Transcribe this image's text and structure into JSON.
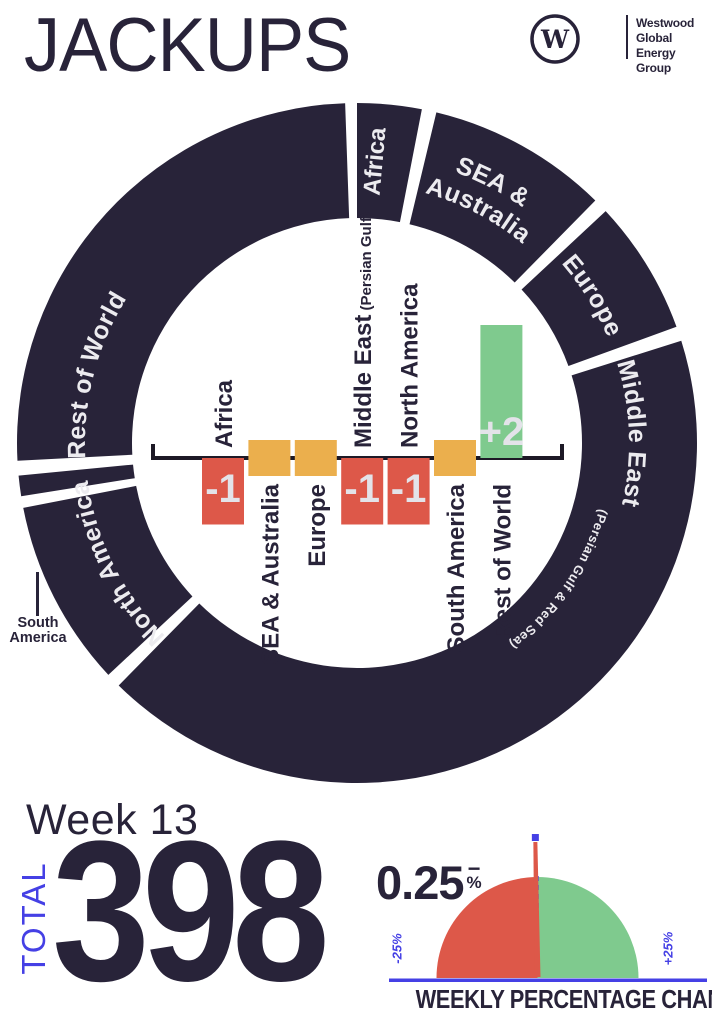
{
  "header": {
    "title": "JACKUPS",
    "logo": {
      "mark": "W",
      "line1": "Westwood",
      "line2": "Global Energy",
      "line3": "Group"
    }
  },
  "colors": {
    "navy": "#282339",
    "red": "#DD5849",
    "yellow": "#EBAF4D",
    "green": "#7FCA8E",
    "blue": "#4540E5",
    "ring_label_text": "#ECEBEF",
    "bar_value_text": "#E3E3E9",
    "axis_black": "#1D1926"
  },
  "south_america_callout": {
    "lines": [
      "South",
      "America"
    ]
  },
  "stats": {
    "week_label": "Week 13",
    "total_label": "TOTAL",
    "total_value": "398"
  },
  "chart_data": [
    {
      "type": "pie",
      "variant": "donut",
      "description": "Share of jackup rigs by region; ring segment size indicates share",
      "segments": [
        {
          "label": "Africa",
          "start_deg": 0,
          "end_deg": 11,
          "label_style": "radial",
          "label_angle": 5.2
        },
        {
          "label": "SEA & Australia",
          "lines": [
            "SEA &",
            "Australia"
          ],
          "start_deg": 13.5,
          "end_deg": 44.5,
          "label_style": "arc",
          "label_angle": 27.5,
          "label_radii": [
            288,
            259
          ]
        },
        {
          "label": "Europe",
          "start_deg": 47,
          "end_deg": 70,
          "label_style": "arc",
          "label_angle": 58,
          "label_radii": [
            272
          ]
        },
        {
          "label": "Middle East",
          "sublabel": "(Persian Gulf & Red Sea)",
          "start_deg": 72.5,
          "end_deg": 224.5,
          "label_style": "arc",
          "label_angle": 88,
          "label_radii": [
            272
          ],
          "sublabel_angle": 124,
          "sublabel_radius": 251
        },
        {
          "label": "North America",
          "start_deg": 227,
          "end_deg": 259,
          "label_style": "arc",
          "label_angle": 243.5,
          "label_radii": [
            272
          ]
        },
        {
          "label": "South America",
          "start_deg": 261,
          "end_deg": 264.5,
          "label_style": "outside"
        },
        {
          "label": "Rest of World",
          "start_deg": 267,
          "end_deg": 358,
          "label_style": "arc",
          "label_angle": 284.5,
          "label_radii": [
            272
          ]
        }
      ]
    },
    {
      "type": "bar",
      "description": "Weekly change in jackup count by region",
      "categories": [
        "Africa",
        "SEA & Australia",
        "Europe",
        "Middle East",
        "North America",
        "South America",
        "Rest of World"
      ],
      "category_suffixes": [
        "",
        "",
        "",
        "(Persian Gulf)",
        "",
        "",
        ""
      ],
      "label_side": [
        "above",
        "below",
        "below",
        "above",
        "above",
        "below",
        "below"
      ],
      "values": [
        -1,
        0,
        0,
        -1,
        -1,
        0,
        2
      ],
      "value_labels": [
        "-1",
        "",
        "",
        "-1",
        "-1",
        "",
        "+2"
      ],
      "bar_colors": [
        "red",
        "yellow",
        "yellow",
        "red",
        "red",
        "yellow",
        "green"
      ]
    },
    {
      "type": "gauge",
      "title": "WEEKLY PERCENTAGE CHANGE",
      "value_pct": -0.25,
      "display_value": "0.25",
      "display_sign": "−",
      "display_unit": "%",
      "min": -25,
      "max": 25,
      "min_label": "-25%",
      "max_label": "+25%"
    }
  ]
}
